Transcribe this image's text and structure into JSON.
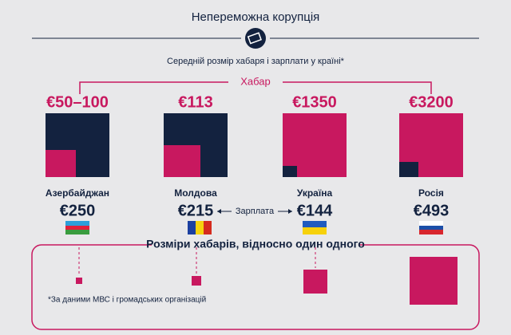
{
  "header": {
    "title": "Непереможна корупція",
    "subtitle": "Середній розмір хабаря і зарплати у країні*"
  },
  "bribe_label": "Хабар",
  "salary_label": "Зарплата",
  "countries": [
    {
      "name": "Азербайджан",
      "bribe": "€50–100",
      "salary": "€250"
    },
    {
      "name": "Молдова",
      "bribe": "€113",
      "salary": "€215"
    },
    {
      "name": "Україна",
      "bribe": "€1350",
      "salary": "€144"
    },
    {
      "name": "Росія",
      "bribe": "€3200",
      "salary": "€493"
    }
  ],
  "relative_title": "Розміри хабарів, відносно один одного",
  "footnote": "*За даними МВС і громадських організацій"
}
